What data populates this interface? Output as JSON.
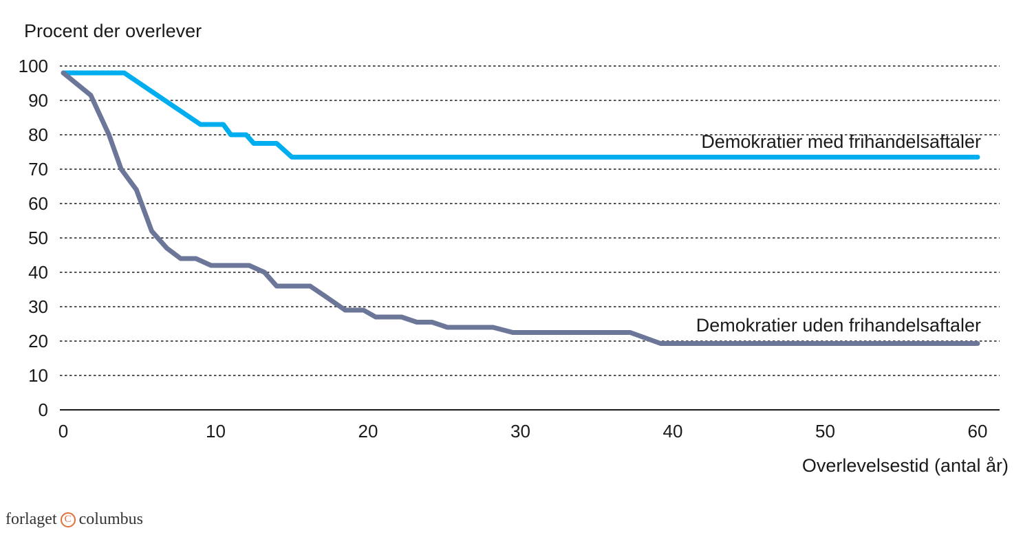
{
  "chart_data": {
    "type": "line",
    "ylabel": "Procent der overlever",
    "xlabel": "Overlevelsestid (antal år)",
    "xlim": [
      0,
      60
    ],
    "ylim": [
      0,
      100
    ],
    "xticks": [
      0,
      10,
      20,
      30,
      40,
      50,
      60
    ],
    "yticks": [
      0,
      10,
      20,
      30,
      40,
      50,
      60,
      70,
      80,
      90,
      100
    ],
    "grid": "horizontal dashed",
    "series": [
      {
        "name": "Demokratier med frihandelsaftaler",
        "color": "#00aeef",
        "points": [
          [
            0,
            98
          ],
          [
            4,
            98
          ],
          [
            9,
            83
          ],
          [
            10.5,
            83
          ],
          [
            11,
            80
          ],
          [
            12,
            80
          ],
          [
            12.5,
            77.5
          ],
          [
            13.5,
            77.5
          ],
          [
            14,
            77.5
          ],
          [
            15,
            73.5
          ],
          [
            60,
            73.5
          ]
        ]
      },
      {
        "name": "Demokratier uden frihandelsaftaler",
        "color": "#6b7698",
        "points": [
          [
            0,
            98
          ],
          [
            1.8,
            91.5
          ],
          [
            3,
            80
          ],
          [
            3.8,
            70
          ],
          [
            4.8,
            64
          ],
          [
            5.8,
            52
          ],
          [
            6.8,
            47
          ],
          [
            7.7,
            44
          ],
          [
            8.7,
            44
          ],
          [
            9.7,
            42
          ],
          [
            11.7,
            42
          ],
          [
            12.2,
            42
          ],
          [
            13.2,
            40
          ],
          [
            14,
            36
          ],
          [
            16.2,
            36
          ],
          [
            17.2,
            33
          ],
          [
            18.5,
            29
          ],
          [
            19.7,
            29
          ],
          [
            20.5,
            27
          ],
          [
            22.2,
            27
          ],
          [
            23.2,
            25.5
          ],
          [
            24.2,
            25.5
          ],
          [
            25.2,
            24
          ],
          [
            28.2,
            24
          ],
          [
            29.5,
            22.5
          ],
          [
            37.2,
            22.5
          ],
          [
            39.2,
            19.3
          ],
          [
            60,
            19.3
          ]
        ]
      }
    ]
  },
  "branding": {
    "publisher_prefix": "forlaget",
    "publisher_mark": "C",
    "publisher_name": "columbus"
  }
}
